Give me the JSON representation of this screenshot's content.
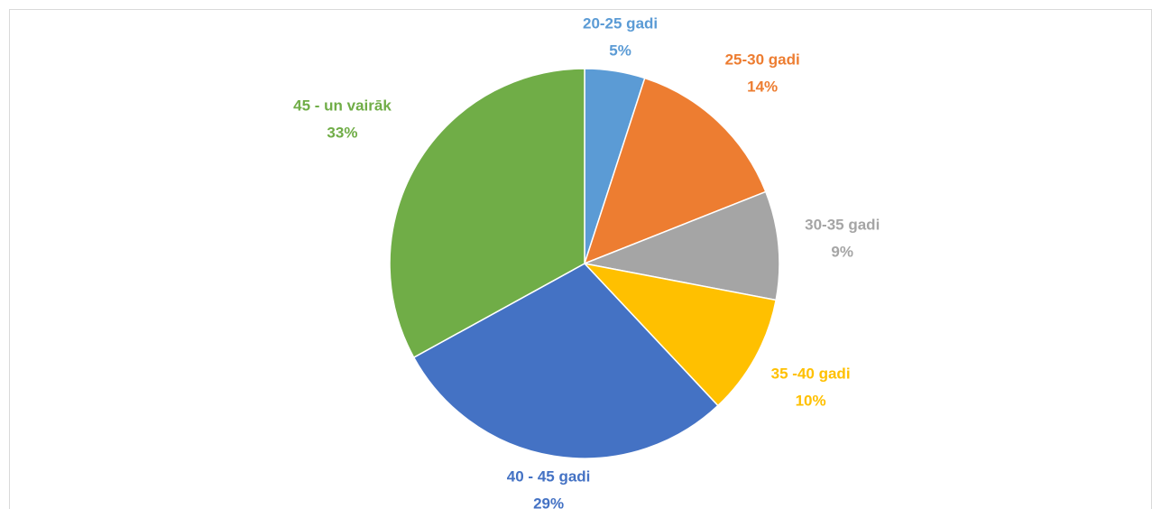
{
  "chart_data": {
    "type": "pie",
    "categories": [
      "20-25 gadi",
      "25-30 gadi",
      "30-35 gadi",
      "35 -40 gadi",
      "40 - 45 gadi",
      "45 - un vairāk"
    ],
    "values": [
      5,
      14,
      9,
      10,
      29,
      33
    ],
    "value_labels": [
      "5%",
      "14%",
      "9%",
      "10%",
      "29%",
      "33%"
    ],
    "colors": [
      "#5b9bd5",
      "#ed7d31",
      "#a5a5a5",
      "#ffc000",
      "#4472c4",
      "#70ad47"
    ]
  }
}
